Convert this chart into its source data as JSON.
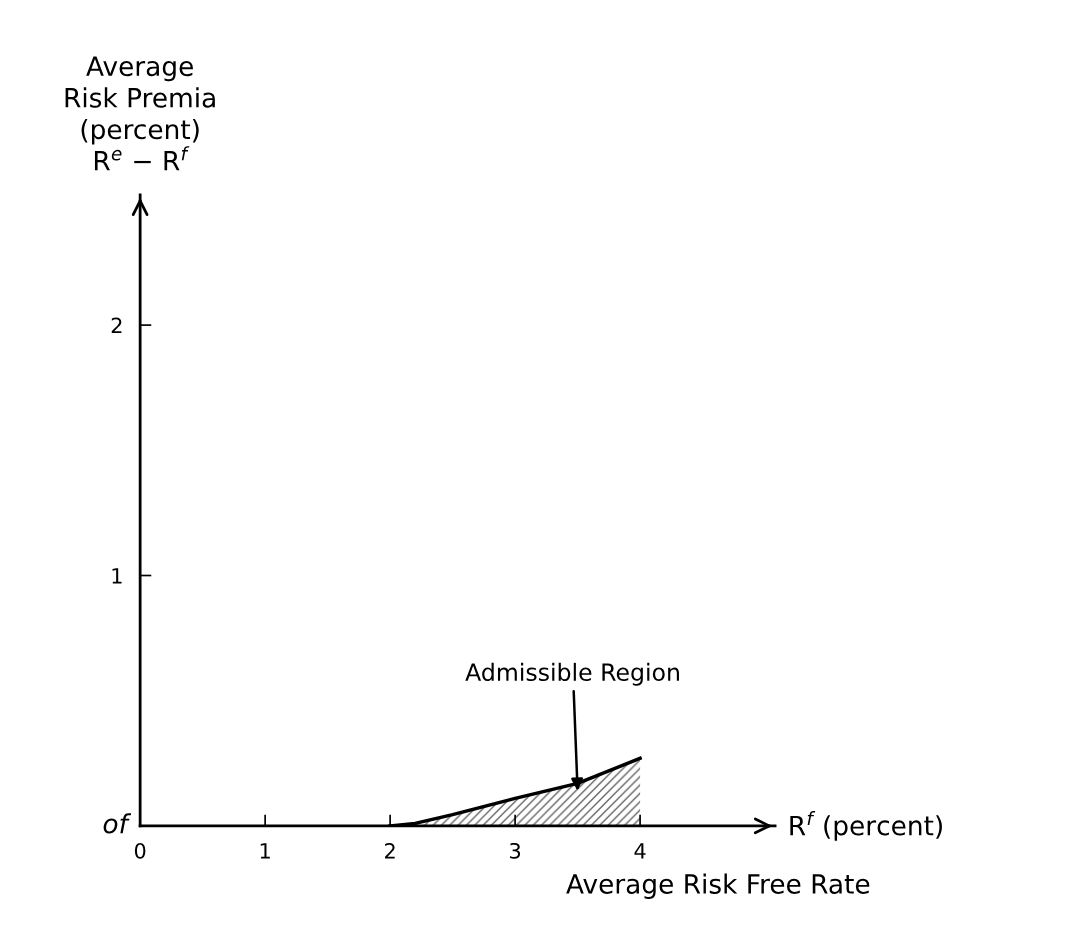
{
  "chart_data": {
    "type": "area",
    "ylabel": "Average\nRisk Premia\n(percent)\nR$^{e}$ − R$^{f}$",
    "xlabel": "R$^{f}$ (percent)",
    "annotations": [
      {
        "text": "Admissible Region",
        "x": 3.5,
        "y": 0.14
      },
      "Average Risk Free Rate",
      "of"
    ],
    "x": [
      2,
      2.2,
      2.5,
      3,
      3.5,
      4
    ],
    "series": [
      {
        "color": "#000000",
        "values": [
          0,
          0.01,
          0.045,
          0.11,
          0.17,
          0.27
        ]
      }
    ],
    "xlim": [
      0,
      5.08
    ],
    "ylim": [
      0,
      2.52
    ],
    "xticks": [
      0,
      1,
      2,
      3,
      4
    ],
    "yticks": [
      1,
      2
    ],
    "grid": false,
    "legend": false
  }
}
